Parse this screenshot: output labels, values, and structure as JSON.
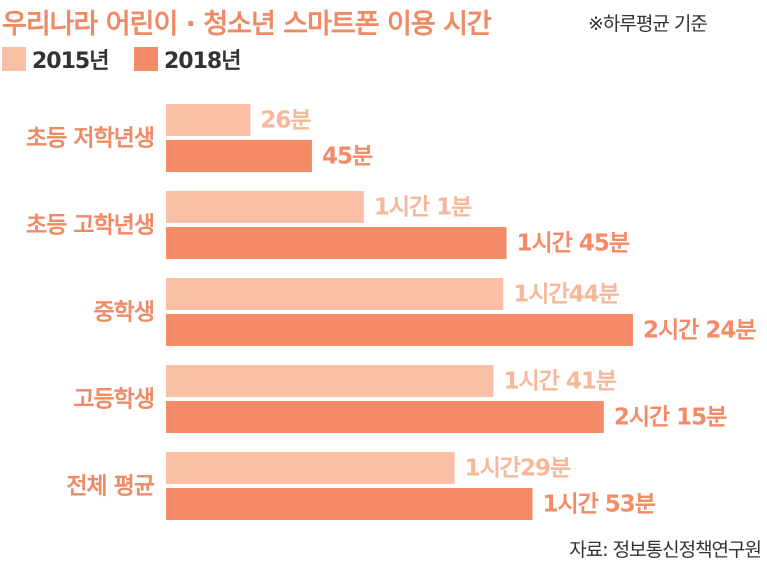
{
  "title": "우리나라 어린이 · 청소년 스마트폰 이용 시간",
  "note": "※하루평균 기준",
  "source": "자료: 정보통신정책연구원",
  "colors": {
    "y2015": "#f9c0a6",
    "y2018": "#f58a67",
    "category": "#ef8a66",
    "text": "#333333"
  },
  "chart_data": {
    "type": "bar",
    "orientation": "horizontal",
    "title": "우리나라 어린이 · 청소년 스마트폰 이용 시간",
    "xlabel": "",
    "ylabel": "",
    "unit": "분",
    "categories": [
      "초등 저학년생",
      "초등 고학년생",
      "중학생",
      "고등학생",
      "전체 평균"
    ],
    "series": [
      {
        "name": "2015년",
        "values": [
          26,
          61,
          104,
          101,
          89
        ],
        "labels": [
          "26분",
          "1시간 1분",
          "1시간44분",
          "1시간 41분",
          "1시간29분"
        ]
      },
      {
        "name": "2018년",
        "values": [
          45,
          105,
          144,
          135,
          113
        ],
        "labels": [
          "45분",
          "1시간 45분",
          "2시간 24분",
          "2시간 15분",
          "1시간 53분"
        ]
      }
    ],
    "xlim": [
      0,
      144
    ],
    "grid": false,
    "legend": "top-left"
  }
}
